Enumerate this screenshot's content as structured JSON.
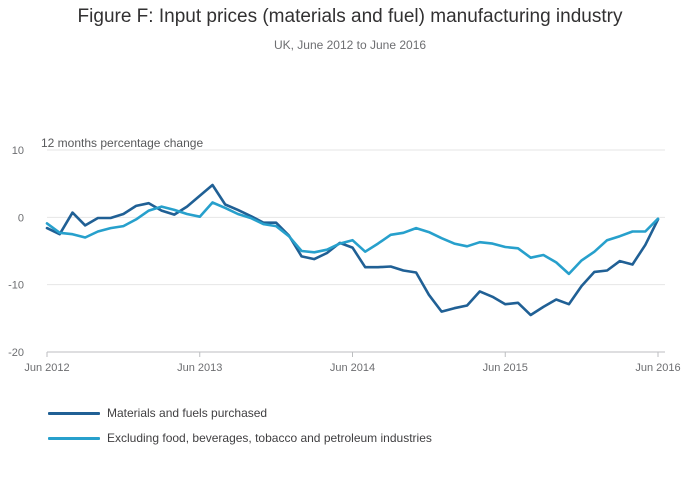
{
  "title": "Figure F: Input prices (materials and fuel) manufacturing industry",
  "subtitle": "UK, June 2012 to June 2016",
  "chart_data": {
    "type": "line",
    "ylabel": "12 months percentage change",
    "ylim": [
      -20,
      10
    ],
    "yticks": [
      10,
      0,
      -10,
      -20
    ],
    "xticks": [
      "Jun 2012",
      "Jun 2013",
      "Jun 2014",
      "Jun 2015",
      "Jun 2016"
    ],
    "x_months_start": "2012-06",
    "grid": true,
    "legend_position": "bottom-left",
    "series": [
      {
        "name": "Materials and fuels purchased",
        "color": "#206095",
        "values": [
          -1.6,
          -2.5,
          0.7,
          -1.2,
          -0.1,
          -0.1,
          0.5,
          1.7,
          2.1,
          1.0,
          0.4,
          1.6,
          3.2,
          4.8,
          1.9,
          1.1,
          0.2,
          -0.8,
          -0.8,
          -2.7,
          -5.8,
          -6.2,
          -5.3,
          -3.8,
          -4.5,
          -7.4,
          -7.4,
          -7.3,
          -7.9,
          -8.2,
          -11.5,
          -14.0,
          -13.5,
          -13.1,
          -11.0,
          -11.8,
          -12.9,
          -12.7,
          -14.5,
          -13.3,
          -12.2,
          -12.9,
          -10.2,
          -8.1,
          -7.9,
          -6.5,
          -7.0,
          -4.1,
          -0.3
        ]
      },
      {
        "name": "Excluding food, beverages, tobacco and petroleum industries",
        "color": "#27a0cc",
        "values": [
          -0.9,
          -2.3,
          -2.5,
          -3.0,
          -2.1,
          -1.6,
          -1.3,
          -0.3,
          1.0,
          1.6,
          1.1,
          0.5,
          0.1,
          2.2,
          1.4,
          0.5,
          -0.1,
          -1.0,
          -1.3,
          -2.8,
          -5.0,
          -5.2,
          -4.8,
          -3.9,
          -3.4,
          -5.1,
          -3.9,
          -2.6,
          -2.3,
          -1.6,
          -2.2,
          -3.1,
          -3.9,
          -4.3,
          -3.7,
          -3.9,
          -4.4,
          -4.6,
          -6.0,
          -5.6,
          -6.7,
          -8.4,
          -6.4,
          -5.1,
          -3.4,
          -2.8,
          -2.1,
          -2.1,
          -0.2
        ]
      }
    ]
  }
}
